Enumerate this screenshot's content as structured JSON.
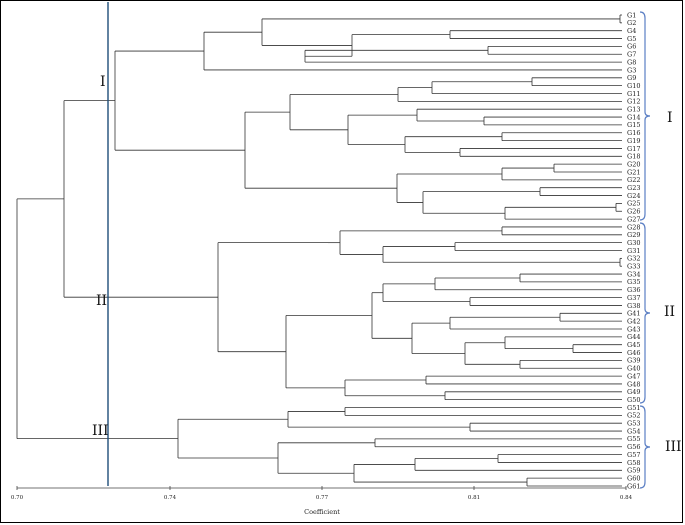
{
  "dendrogram": {
    "axis_label": "Coefficient",
    "ticks": [
      "0.70",
      "0.74",
      "0.77",
      "0.81",
      "0.84"
    ],
    "cluster_labels": [
      "I",
      "II",
      "III"
    ],
    "leaves": [
      "G1",
      "G2",
      "G4",
      "G5",
      "G6",
      "G7",
      "G8",
      "G3",
      "G9",
      "G10",
      "G11",
      "G12",
      "G13",
      "G14",
      "G15",
      "G16",
      "G19",
      "G17",
      "G18",
      "G20",
      "G21",
      "G22",
      "G23",
      "G24",
      "G25",
      "G26",
      "G27",
      "G28",
      "G29",
      "G30",
      "G31",
      "G32",
      "G33",
      "G34",
      "G35",
      "G36",
      "G37",
      "G38",
      "G41",
      "G42",
      "G43",
      "G44",
      "G45",
      "G46",
      "G39",
      "G40",
      "G47",
      "G48",
      "G49",
      "G50",
      "G51",
      "G52",
      "G53",
      "G54",
      "G55",
      "G56",
      "G57",
      "G58",
      "G59",
      "G60",
      "G61"
    ],
    "cutoff_line_color": "#1f4e79",
    "brace_color": "#5b7fc4"
  }
}
